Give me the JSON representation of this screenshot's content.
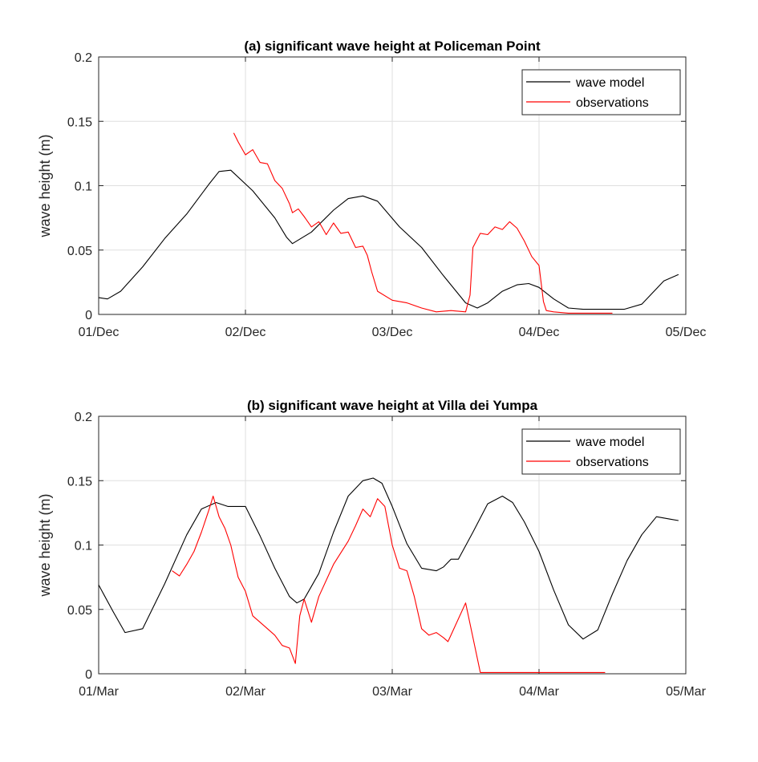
{
  "chart_data": [
    {
      "type": "line",
      "title": "(a) significant wave height at Policeman Point",
      "ylabel": "wave height (m)",
      "xlabel": "",
      "x_ticks": [
        "01/Dec",
        "02/Dec",
        "03/Dec",
        "04/Dec",
        "05/Dec"
      ],
      "y_ticks": [
        "0",
        "0.05",
        "0.1",
        "0.15",
        "0.2"
      ],
      "xlim_days": [
        0,
        4
      ],
      "ylim": [
        0,
        0.2
      ],
      "grid": true,
      "legend_position": "top-right",
      "series": [
        {
          "name": "wave model",
          "color": "#000000",
          "x": [
            0,
            0.06,
            0.15,
            0.3,
            0.45,
            0.6,
            0.75,
            0.82,
            0.9,
            1.05,
            1.2,
            1.28,
            1.32,
            1.45,
            1.6,
            1.7,
            1.8,
            1.9,
            2.05,
            2.2,
            2.35,
            2.5,
            2.58,
            2.65,
            2.75,
            2.85,
            2.93,
            3.0,
            3.1,
            3.2,
            3.3,
            3.5,
            3.58,
            3.7,
            3.85,
            3.95
          ],
          "y": [
            0.013,
            0.012,
            0.018,
            0.037,
            0.059,
            0.078,
            0.101,
            0.111,
            0.112,
            0.096,
            0.075,
            0.06,
            0.055,
            0.064,
            0.081,
            0.09,
            0.092,
            0.088,
            0.068,
            0.052,
            0.03,
            0.009,
            0.005,
            0.009,
            0.018,
            0.023,
            0.024,
            0.021,
            0.012,
            0.005,
            0.004,
            0.004,
            0.004,
            0.008,
            0.026,
            0.031
          ]
        },
        {
          "name": "observations",
          "color": "#ff0000",
          "x": [
            0.92,
            0.95,
            1.0,
            1.05,
            1.1,
            1.15,
            1.2,
            1.25,
            1.3,
            1.32,
            1.36,
            1.4,
            1.45,
            1.5,
            1.55,
            1.6,
            1.65,
            1.7,
            1.75,
            1.8,
            1.83,
            1.86,
            1.9,
            2.0,
            2.1,
            2.2,
            2.3,
            2.4,
            2.5,
            2.53,
            2.55,
            2.6,
            2.65,
            2.7,
            2.75,
            2.8,
            2.85,
            2.9,
            2.95,
            3.0,
            3.03,
            3.05,
            3.1,
            3.2,
            3.3,
            3.4,
            3.5
          ],
          "y": [
            0.141,
            0.134,
            0.124,
            0.128,
            0.118,
            0.117,
            0.104,
            0.098,
            0.086,
            0.079,
            0.082,
            0.076,
            0.068,
            0.072,
            0.062,
            0.071,
            0.063,
            0.064,
            0.052,
            0.053,
            0.046,
            0.033,
            0.018,
            0.011,
            0.009,
            0.005,
            0.002,
            0.003,
            0.002,
            0.015,
            0.052,
            0.063,
            0.062,
            0.068,
            0.066,
            0.072,
            0.067,
            0.057,
            0.045,
            0.038,
            0.01,
            0.003,
            0.002,
            0.001,
            0.001,
            0.001,
            0.001
          ]
        }
      ]
    },
    {
      "type": "line",
      "title": "(b) significant wave height at Villa dei Yumpa",
      "ylabel": "wave height (m)",
      "xlabel": "",
      "x_ticks": [
        "01/Mar",
        "02/Mar",
        "03/Mar",
        "04/Mar",
        "05/Mar"
      ],
      "y_ticks": [
        "0",
        "0.05",
        "0.1",
        "0.15",
        "0.2"
      ],
      "xlim_days": [
        0,
        4
      ],
      "ylim": [
        0,
        0.2
      ],
      "grid": true,
      "legend_position": "top-right",
      "series": [
        {
          "name": "wave model",
          "color": "#000000",
          "x": [
            0,
            0.1,
            0.18,
            0.3,
            0.45,
            0.6,
            0.7,
            0.8,
            0.88,
            1.0,
            1.1,
            1.2,
            1.3,
            1.35,
            1.4,
            1.5,
            1.6,
            1.7,
            1.8,
            1.87,
            1.93,
            2.0,
            2.1,
            2.2,
            2.3,
            2.35,
            2.4,
            2.45,
            2.55,
            2.65,
            2.75,
            2.82,
            2.9,
            3.0,
            3.1,
            3.2,
            3.3,
            3.4,
            3.5,
            3.6,
            3.7,
            3.8,
            3.9,
            3.95
          ],
          "y": [
            0.069,
            0.048,
            0.032,
            0.035,
            0.07,
            0.108,
            0.128,
            0.133,
            0.13,
            0.13,
            0.107,
            0.082,
            0.06,
            0.055,
            0.058,
            0.078,
            0.11,
            0.138,
            0.15,
            0.152,
            0.148,
            0.13,
            0.101,
            0.082,
            0.08,
            0.083,
            0.089,
            0.089,
            0.11,
            0.132,
            0.138,
            0.133,
            0.118,
            0.095,
            0.065,
            0.038,
            0.027,
            0.034,
            0.062,
            0.088,
            0.108,
            0.122,
            0.12,
            0.119
          ]
        },
        {
          "name": "observations",
          "color": "#ff0000",
          "x": [
            0.5,
            0.55,
            0.6,
            0.65,
            0.7,
            0.75,
            0.78,
            0.82,
            0.86,
            0.9,
            0.95,
            1.0,
            1.05,
            1.1,
            1.15,
            1.2,
            1.25,
            1.3,
            1.34,
            1.37,
            1.4,
            1.45,
            1.5,
            1.6,
            1.7,
            1.75,
            1.8,
            1.85,
            1.9,
            1.95,
            2.0,
            2.05,
            2.1,
            2.15,
            2.2,
            2.25,
            2.3,
            2.35,
            2.38,
            2.4,
            2.5,
            2.6,
            2.7,
            2.8,
            2.9,
            3.0,
            3.1,
            3.2,
            3.3,
            3.45
          ],
          "y": [
            0.08,
            0.076,
            0.085,
            0.095,
            0.11,
            0.127,
            0.138,
            0.122,
            0.113,
            0.1,
            0.075,
            0.064,
            0.045,
            0.04,
            0.035,
            0.03,
            0.022,
            0.02,
            0.008,
            0.045,
            0.058,
            0.04,
            0.06,
            0.085,
            0.103,
            0.115,
            0.128,
            0.122,
            0.136,
            0.13,
            0.1,
            0.082,
            0.08,
            0.06,
            0.035,
            0.03,
            0.032,
            0.028,
            0.025,
            0.03,
            0.055,
            0.001,
            0.001,
            0.001,
            0.001,
            0.001,
            0.001,
            0.001,
            0.001,
            0.001
          ]
        }
      ]
    }
  ]
}
